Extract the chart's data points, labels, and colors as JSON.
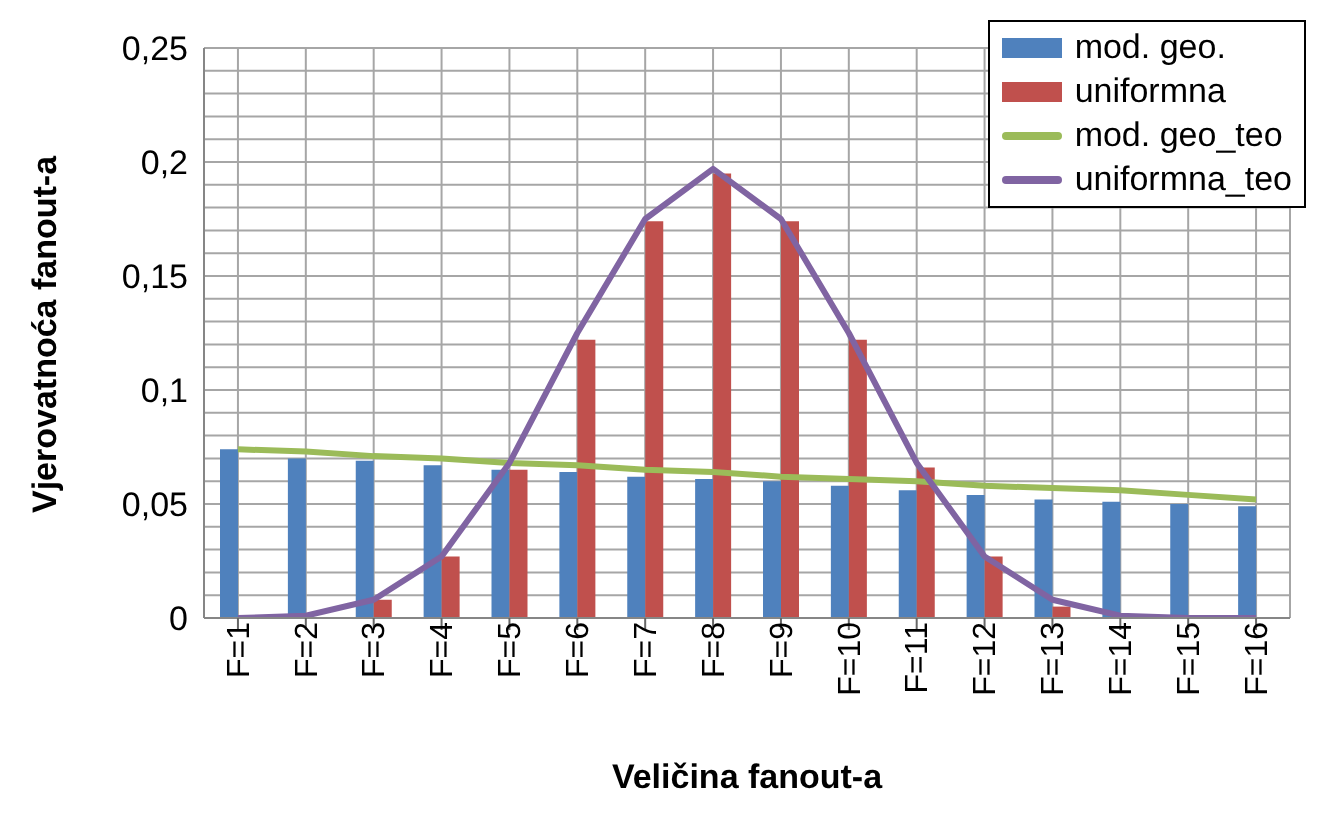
{
  "chart_data": {
    "type": "bar",
    "xlabel": "Veličina fanout-a",
    "ylabel": "Vjerovatnoća fanout-a",
    "categories": [
      "F=1",
      "F=2",
      "F=3",
      "F=4",
      "F=5",
      "F=6",
      "F=7",
      "F=8",
      "F=9",
      "F=10",
      "F=11",
      "F=12",
      "F=13",
      "F=14",
      "F=15",
      "F=16"
    ],
    "series": [
      {
        "name": "mod. geo.",
        "color": "#4f81bd",
        "values": [
          0.074,
          0.07,
          0.069,
          0.067,
          0.065,
          0.064,
          0.062,
          0.061,
          0.06,
          0.058,
          0.056,
          0.054,
          0.052,
          0.051,
          0.05,
          0.049
        ]
      },
      {
        "name": "uniformna",
        "color": "#c0504d",
        "values": [
          0,
          0,
          0.008,
          0.027,
          0.065,
          0.122,
          0.174,
          0.195,
          0.174,
          0.122,
          0.066,
          0.027,
          0.005,
          0,
          0,
          0
        ]
      },
      {
        "name": "mod. geo_teo",
        "type": "line",
        "color": "#9bbb59",
        "values": [
          0.074,
          0.073,
          0.071,
          0.07,
          0.068,
          0.067,
          0.065,
          0.064,
          0.062,
          0.061,
          0.06,
          0.058,
          0.057,
          0.056,
          0.054,
          0.052
        ]
      },
      {
        "name": "uniformna_teo",
        "type": "line",
        "color": "#8064a2",
        "values": [
          0,
          0.001,
          0.008,
          0.027,
          0.068,
          0.125,
          0.175,
          0.197,
          0.175,
          0.125,
          0.068,
          0.027,
          0.008,
          0.001,
          0,
          0
        ]
      }
    ],
    "ylim": [
      0,
      0.25
    ],
    "yticks": [
      {
        "value": 0,
        "label": "0"
      },
      {
        "value": 0.01,
        "label": null
      },
      {
        "value": 0.02,
        "label": null
      },
      {
        "value": 0.03,
        "label": null
      },
      {
        "value": 0.04,
        "label": null
      },
      {
        "value": 0.05,
        "label": "0,05"
      },
      {
        "value": 0.06,
        "label": null
      },
      {
        "value": 0.07,
        "label": null
      },
      {
        "value": 0.08,
        "label": null
      },
      {
        "value": 0.09,
        "label": null
      },
      {
        "value": 0.1,
        "label": "0,1"
      },
      {
        "value": 0.11,
        "label": null
      },
      {
        "value": 0.12,
        "label": null
      },
      {
        "value": 0.13,
        "label": null
      },
      {
        "value": 0.14,
        "label": null
      },
      {
        "value": 0.15,
        "label": "0,15"
      },
      {
        "value": 0.16,
        "label": null
      },
      {
        "value": 0.17,
        "label": null
      },
      {
        "value": 0.18,
        "label": null
      },
      {
        "value": 0.19,
        "label": null
      },
      {
        "value": 0.2,
        "label": "0,2"
      },
      {
        "value": 0.21,
        "label": null
      },
      {
        "value": 0.22,
        "label": null
      },
      {
        "value": 0.23,
        "label": null
      },
      {
        "value": 0.24,
        "label": null
      },
      {
        "value": 0.25,
        "label": "0,25"
      }
    ],
    "grid": true,
    "legend": "top right",
    "marker": "none"
  }
}
